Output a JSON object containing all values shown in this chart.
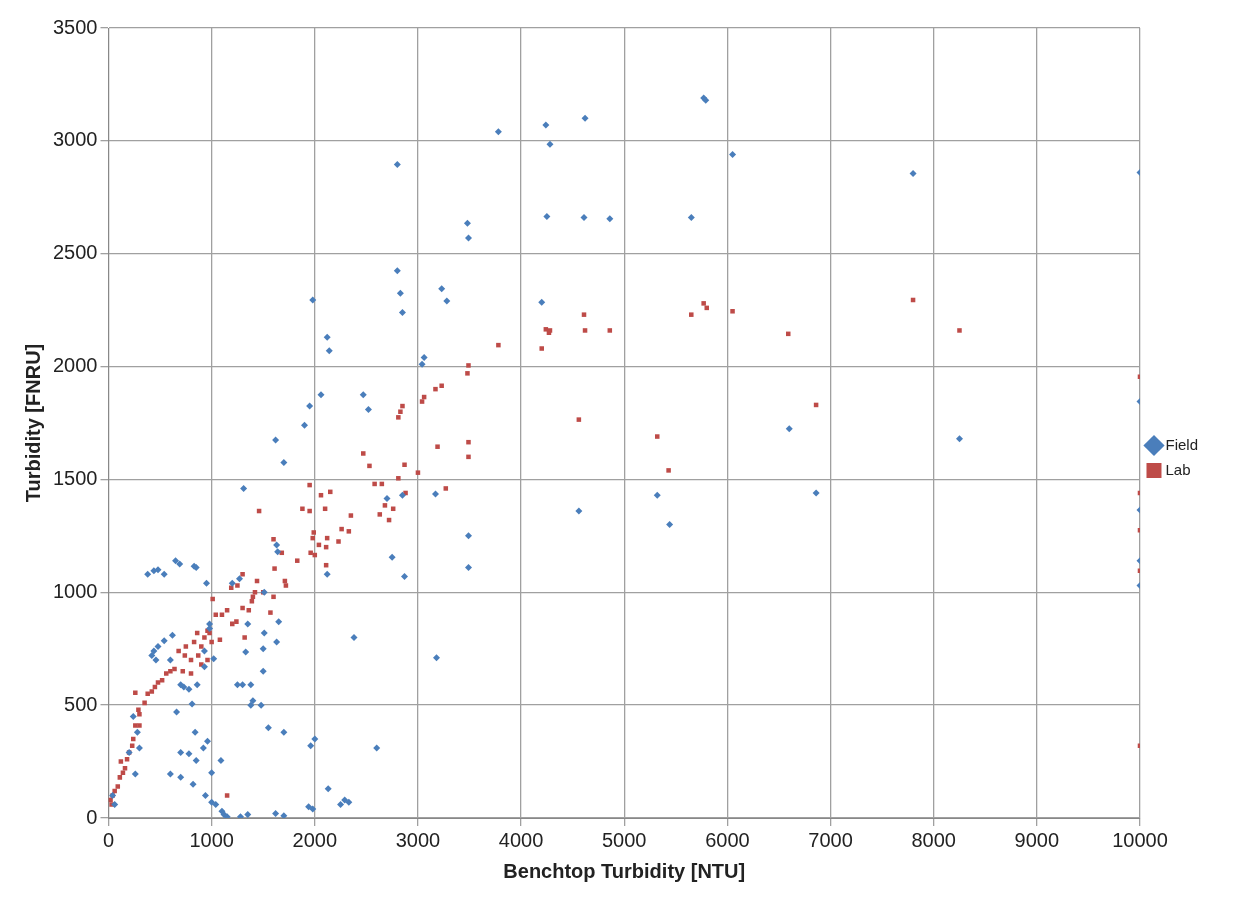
{
  "chart_data": {
    "type": "scatter",
    "xlabel": "Benchtop Turbidity [NTU]",
    "ylabel": "Turbidity [FNRU]",
    "xlim": [
      0,
      10000
    ],
    "xticks": [
      0,
      1000,
      2000,
      3000,
      4000,
      5000,
      6000,
      7000,
      8000,
      9000,
      10000
    ],
    "ylim": [
      0,
      3500
    ],
    "yticks": [
      0,
      500,
      1000,
      1500,
      2000,
      2500,
      3000,
      3500
    ],
    "grid": true,
    "legend": "right",
    "series": [
      {
        "name": "Field",
        "color": "#4a7ebb",
        "marker": "diamond",
        "x": [
          4620,
          4240,
          4280,
          3780,
          2800,
          5770,
          5790,
          6050,
          7800,
          10000,
          4250,
          4610,
          4860,
          5650,
          3480,
          3490,
          2800,
          2830,
          2850,
          3230,
          3280,
          1980,
          4200,
          2120,
          2140,
          3060,
          3040,
          2060,
          2470,
          1950,
          2520,
          1900,
          6600,
          8250,
          1620,
          1700,
          10000,
          2850,
          3170,
          2700,
          4560,
          5320,
          5440,
          6860,
          10000,
          10000,
          10000,
          3490,
          3490,
          2750,
          2870,
          2120,
          1310,
          1630,
          1640,
          1510,
          1270,
          1200,
          380,
          440,
          480,
          540,
          650,
          690,
          830,
          850,
          950,
          1650,
          1510,
          1500,
          1630,
          1500,
          1350,
          1330,
          2380,
          3180,
          1300,
          1380,
          980,
          980,
          930,
          1020,
          930,
          780,
          860,
          700,
          600,
          440,
          480,
          420,
          460,
          540,
          620,
          1380,
          1400,
          1250,
          1480,
          1550,
          1700,
          2600,
          2000,
          1960,
          660,
          810,
          730,
          840,
          920,
          960,
          700,
          780,
          850,
          1090,
          600,
          700,
          1000,
          820,
          940,
          1000,
          1040,
          1100,
          1120,
          1150,
          1280,
          1350,
          1620,
          1700,
          1940,
          1980,
          2130,
          2250,
          2290,
          2330,
          300,
          260,
          280,
          60,
          40,
          200,
          240
        ],
        "values": [
          3100,
          3070,
          2985,
          3040,
          2895,
          3190,
          3180,
          2940,
          2855,
          2860,
          2665,
          2660,
          2655,
          2660,
          2635,
          2570,
          2425,
          2325,
          2240,
          2345,
          2290,
          2295,
          2285,
          2130,
          2070,
          2040,
          2010,
          1875,
          1875,
          1825,
          1810,
          1740,
          1725,
          1680,
          1675,
          1575,
          1845,
          1430,
          1435,
          1415,
          1360,
          1430,
          1300,
          1440,
          1365,
          1140,
          1030,
          1250,
          1110,
          1155,
          1070,
          1080,
          1460,
          1210,
          1180,
          1000,
          1060,
          1040,
          1080,
          1095,
          1100,
          1080,
          1140,
          1125,
          1115,
          1110,
          1040,
          870,
          820,
          750,
          780,
          650,
          860,
          735,
          800,
          710,
          590,
          590,
          860,
          840,
          740,
          705,
          670,
          570,
          590,
          590,
          700,
          740,
          760,
          720,
          700,
          785,
          810,
          500,
          520,
          590,
          500,
          400,
          380,
          310,
          350,
          320,
          470,
          505,
          580,
          380,
          310,
          340,
          290,
          285,
          255,
          255,
          195,
          180,
          200,
          150,
          100,
          70,
          60,
          30,
          15,
          5,
          5,
          15,
          20,
          10,
          50,
          40,
          130,
          60,
          80,
          70,
          310,
          195,
          380,
          60,
          100,
          290,
          450
        ]
      },
      {
        "name": "Lab",
        "color": "#be4b48",
        "marker": "square",
        "x": [
          10000,
          10000,
          10000,
          10000,
          10000,
          7800,
          8250,
          6050,
          5770,
          5800,
          5650,
          6590,
          6860,
          5320,
          5430,
          4560,
          4610,
          4620,
          4240,
          4270,
          4200,
          4280,
          4860,
          3780,
          3490,
          3480,
          3230,
          3170,
          3060,
          3040,
          2850,
          2810,
          2830,
          2470,
          2530,
          3490,
          3490,
          3190,
          2870,
          2810,
          3000,
          2880,
          3270,
          2580,
          2650,
          2630,
          2680,
          2760,
          2720,
          2350,
          1950,
          2060,
          2150,
          1880,
          1950,
          1460,
          2100,
          2260,
          2330,
          2120,
          2110,
          2230,
          2110,
          1980,
          1990,
          1960,
          2000,
          2040,
          1830,
          1600,
          1680,
          1610,
          1710,
          1720,
          1600,
          1570,
          1500,
          1440,
          1390,
          1400,
          1420,
          1320,
          1300,
          1250,
          1190,
          1360,
          1300,
          1240,
          1200,
          1150,
          1100,
          1080,
          1010,
          1040,
          980,
          960,
          930,
          900,
          860,
          870,
          830,
          800,
          750,
          740,
          720,
          680,
          640,
          600,
          560,
          520,
          480,
          450,
          420,
          380,
          350,
          300,
          260,
          290,
          260,
          300,
          240,
          230,
          200,
          180,
          160,
          140,
          110,
          90,
          60,
          40,
          20,
          30,
          120,
          1150,
          800,
          900,
          960,
          1000
        ],
        "values": [
          1955,
          1440,
          1275,
          1095,
          320,
          2295,
          2160,
          2245,
          2280,
          2260,
          2230,
          2145,
          1830,
          1690,
          1540,
          1765,
          2230,
          2160,
          2165,
          2150,
          2080,
          2160,
          2160,
          2095,
          2005,
          1970,
          1915,
          1900,
          1865,
          1845,
          1825,
          1775,
          1800,
          1615,
          1560,
          1665,
          1600,
          1645,
          1565,
          1505,
          1530,
          1440,
          1460,
          1480,
          1480,
          1345,
          1385,
          1370,
          1320,
          1340,
          1475,
          1430,
          1445,
          1370,
          1360,
          1360,
          1370,
          1280,
          1270,
          1240,
          1200,
          1225,
          1120,
          1240,
          1265,
          1175,
          1165,
          1210,
          1140,
          1235,
          1175,
          1105,
          1050,
          1030,
          980,
          910,
          1000,
          1050,
          960,
          980,
          1000,
          800,
          1080,
          1030,
          1020,
          920,
          930,
          870,
          860,
          920,
          900,
          790,
          970,
          900,
          820,
          830,
          800,
          760,
          820,
          720,
          780,
          700,
          760,
          720,
          650,
          740,
          660,
          650,
          640,
          610,
          600,
          580,
          560,
          550,
          510,
          460,
          555,
          480,
          410,
          410,
          350,
          320,
          290,
          260,
          220,
          200,
          180,
          140,
          120,
          100,
          80,
          60,
          250,
          100,
          640,
          680,
          700,
          780
        ]
      }
    ]
  }
}
